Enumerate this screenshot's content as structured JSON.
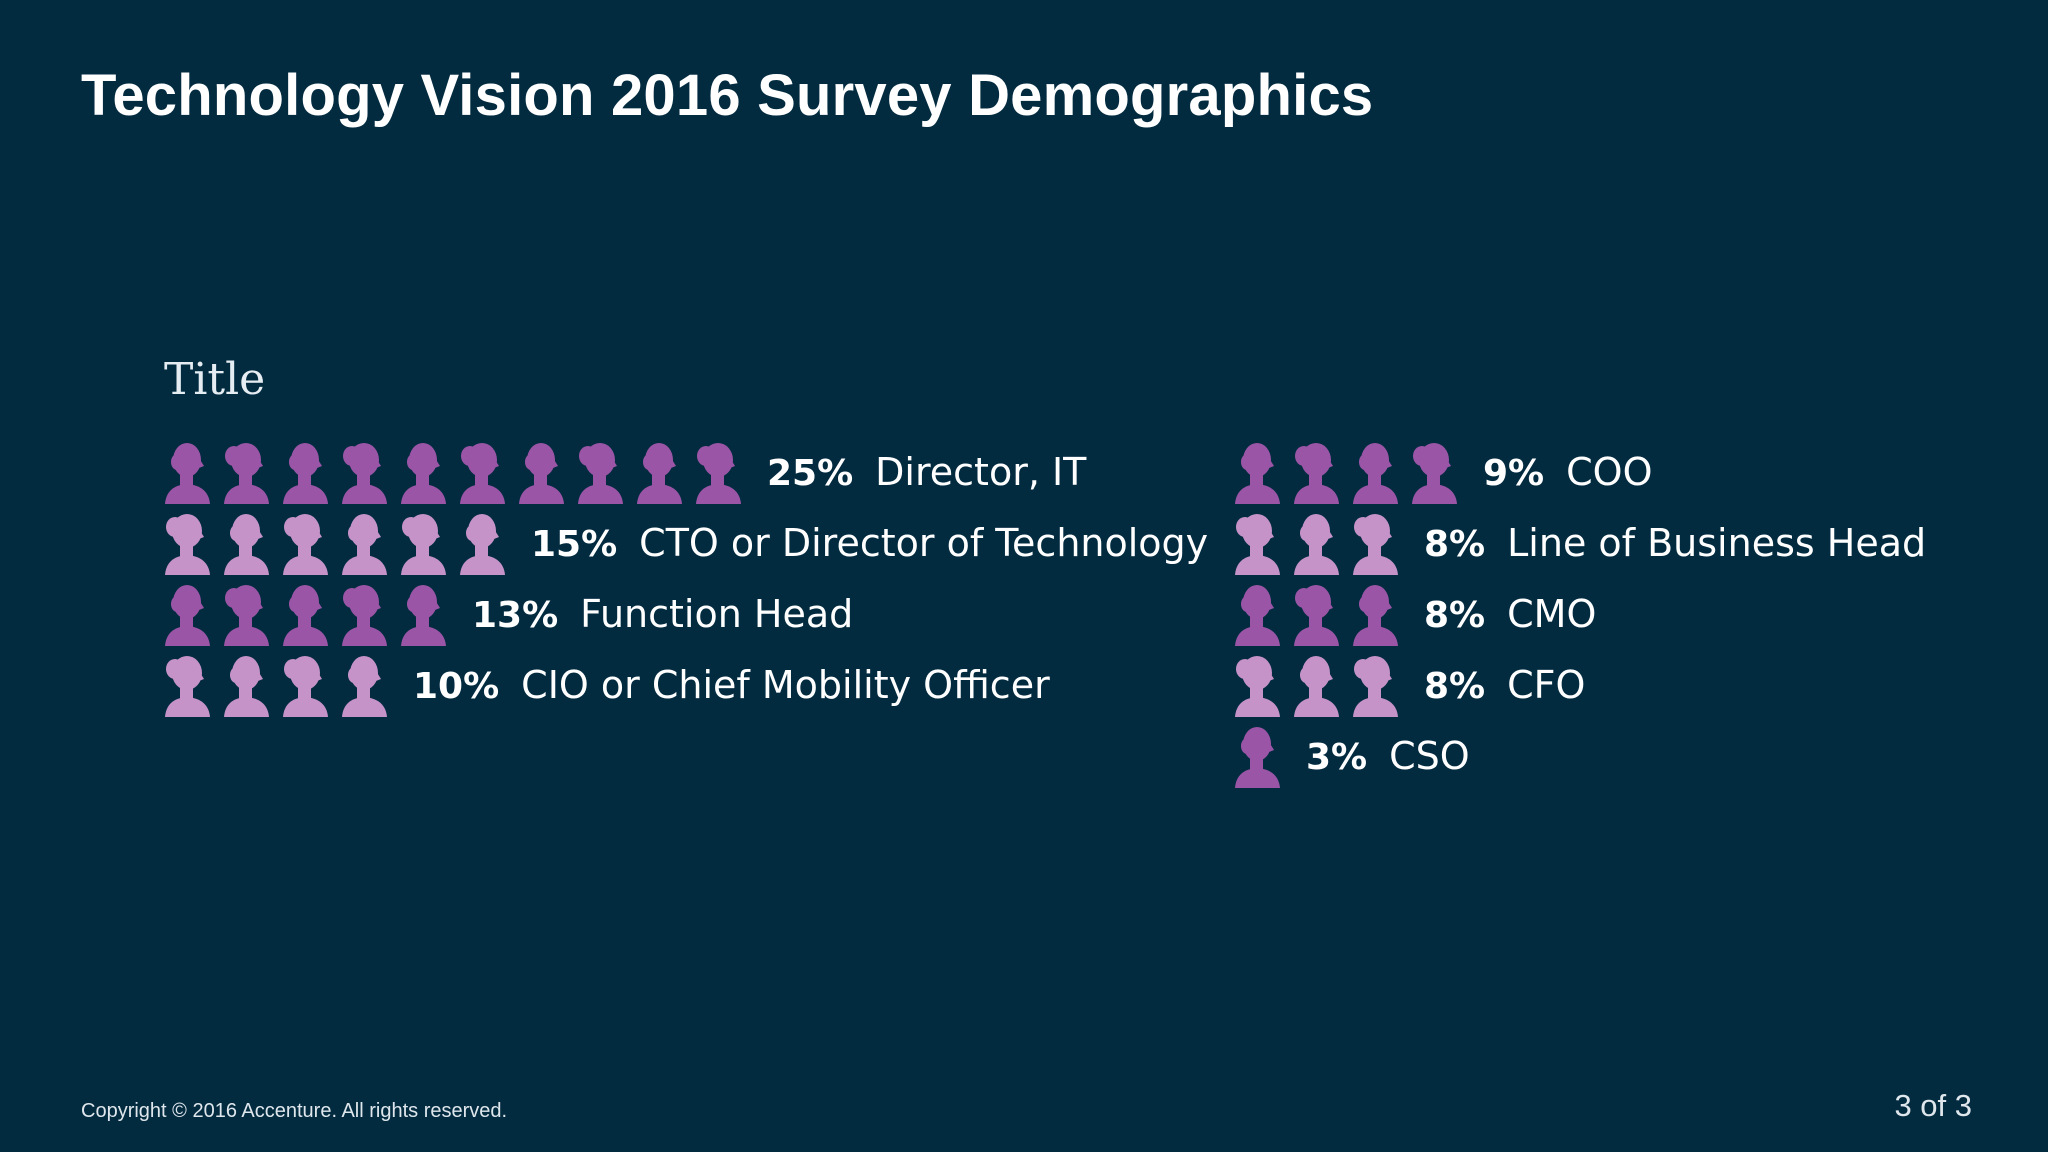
{
  "slide": {
    "title": "Technology Vision 2016 Survey Demographics",
    "copyright": "Copyright © 2016 Accenture. All rights reserved.",
    "page_indicator": "3 of 3"
  },
  "colors": {
    "background": "#032b40",
    "icon_dark": "#9b55a6",
    "icon_light": "#c693c9"
  },
  "icon": "person-silhouette-icon",
  "chart_data": {
    "type": "pictograph",
    "title": "Title",
    "unit": "%",
    "columns": [
      {
        "rows": [
          {
            "percent": 25,
            "percent_label": "25%",
            "role": "Director, IT",
            "icon_count": 10,
            "icon_color": "dark"
          },
          {
            "percent": 15,
            "percent_label": "15%",
            "role": "CTO or Director of Technology",
            "icon_count": 6,
            "icon_color": "light"
          },
          {
            "percent": 13,
            "percent_label": "13%",
            "role": "Function Head",
            "icon_count": 5,
            "icon_color": "dark"
          },
          {
            "percent": 10,
            "percent_label": "10%",
            "role": "CIO or Chief Mobility Officer",
            "icon_count": 4,
            "icon_color": "light"
          }
        ]
      },
      {
        "rows": [
          {
            "percent": 9,
            "percent_label": "9%",
            "role": "COO",
            "icon_count": 4,
            "icon_color": "dark"
          },
          {
            "percent": 8,
            "percent_label": "8%",
            "role": "Line of Business Head",
            "icon_count": 3,
            "icon_color": "light"
          },
          {
            "percent": 8,
            "percent_label": "8%",
            "role": "CMO",
            "icon_count": 3,
            "icon_color": "dark"
          },
          {
            "percent": 8,
            "percent_label": "8%",
            "role": "CFO",
            "icon_count": 3,
            "icon_color": "light"
          },
          {
            "percent": 3,
            "percent_label": "3%",
            "role": "CSO",
            "icon_count": 1,
            "icon_color": "dark"
          }
        ]
      }
    ]
  }
}
